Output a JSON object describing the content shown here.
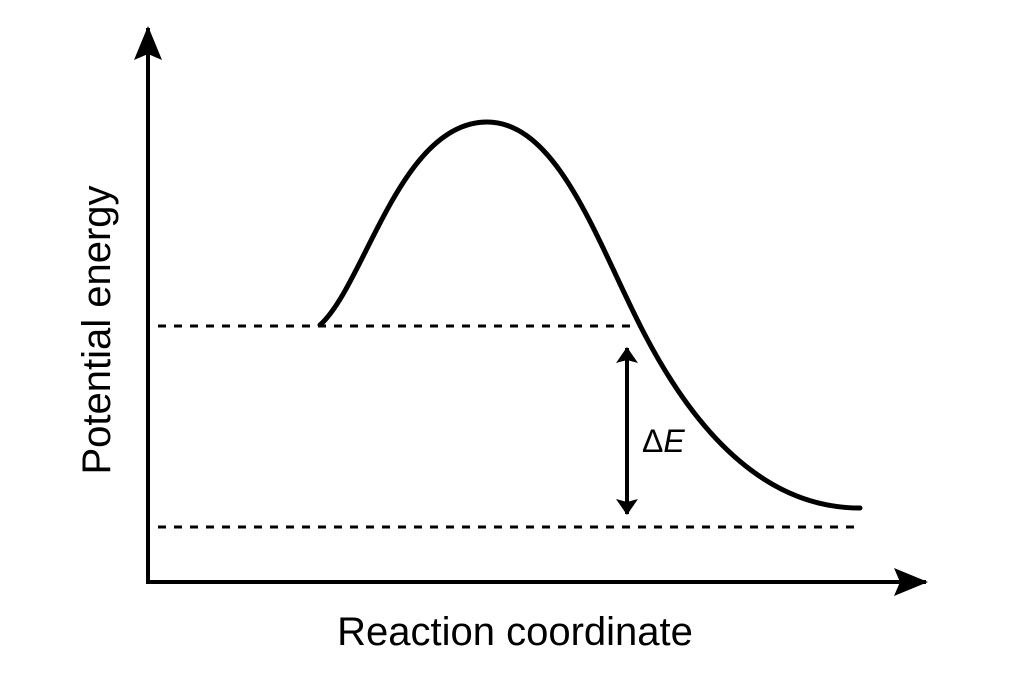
{
  "axes": {
    "y_label": "Potential energy",
    "x_label": "Reaction coordinate"
  },
  "annotation": {
    "symbol": "Δ",
    "variable": "E"
  }
}
